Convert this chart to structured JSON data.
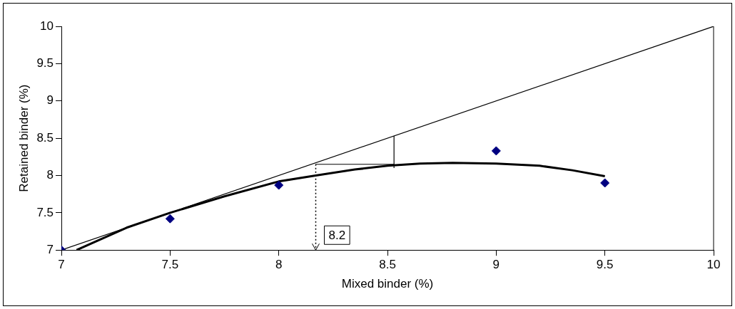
{
  "chart_data": {
    "type": "scatter",
    "xlabel": "Mixed binder (%)",
    "ylabel": "Retained binder (%)",
    "xlim": [
      7,
      10
    ],
    "xticks": [
      7,
      7.5,
      8,
      8.5,
      9,
      9.5,
      10
    ],
    "ylim": [
      7,
      10
    ],
    "yticks": [
      7,
      7.5,
      8,
      8.5,
      9,
      9.5,
      10
    ],
    "grid": false,
    "legend": false,
    "series": [
      {
        "type": "scatter",
        "color": "#000080",
        "marker": "diamond",
        "x": [
          7,
          7.5,
          8,
          9,
          9.5
        ],
        "values": [
          7,
          7.42,
          7.87,
          8.33,
          7.9
        ]
      },
      {
        "type": "line",
        "color": "#000000",
        "marker": "none",
        "x": [
          7,
          10
        ],
        "values": [
          7,
          10
        ]
      },
      {
        "type": "line",
        "color": "#000000",
        "marker": "none",
        "x": [
          7.07,
          7.3,
          7.5,
          7.75,
          8,
          8.17,
          8.35,
          8.5,
          8.65,
          8.8,
          9,
          9.2,
          9.35,
          9.5
        ],
        "values": [
          7.0,
          7.3,
          7.5,
          7.72,
          7.92,
          8.0,
          8.08,
          8.13,
          8.16,
          8.17,
          8.16,
          8.13,
          8.07,
          7.99
        ]
      },
      {
        "type": "line",
        "color": "#000000",
        "marker": "none",
        "x": [
          8.17,
          8.53
        ],
        "values": [
          8.15,
          8.15
        ]
      },
      {
        "type": "line",
        "color": "#000000",
        "marker": "none",
        "x": [
          8.53,
          8.53
        ],
        "values": [
          8.1,
          8.53
        ]
      },
      {
        "type": "line",
        "color": "#000000",
        "marker": "none",
        "line_style": "dotted",
        "x": [
          8.17,
          8.17
        ],
        "values": [
          8.15,
          7
        ]
      }
    ],
    "annotations": [
      {
        "text": "8.2",
        "x": 8.17,
        "y": 7.2
      }
    ]
  }
}
